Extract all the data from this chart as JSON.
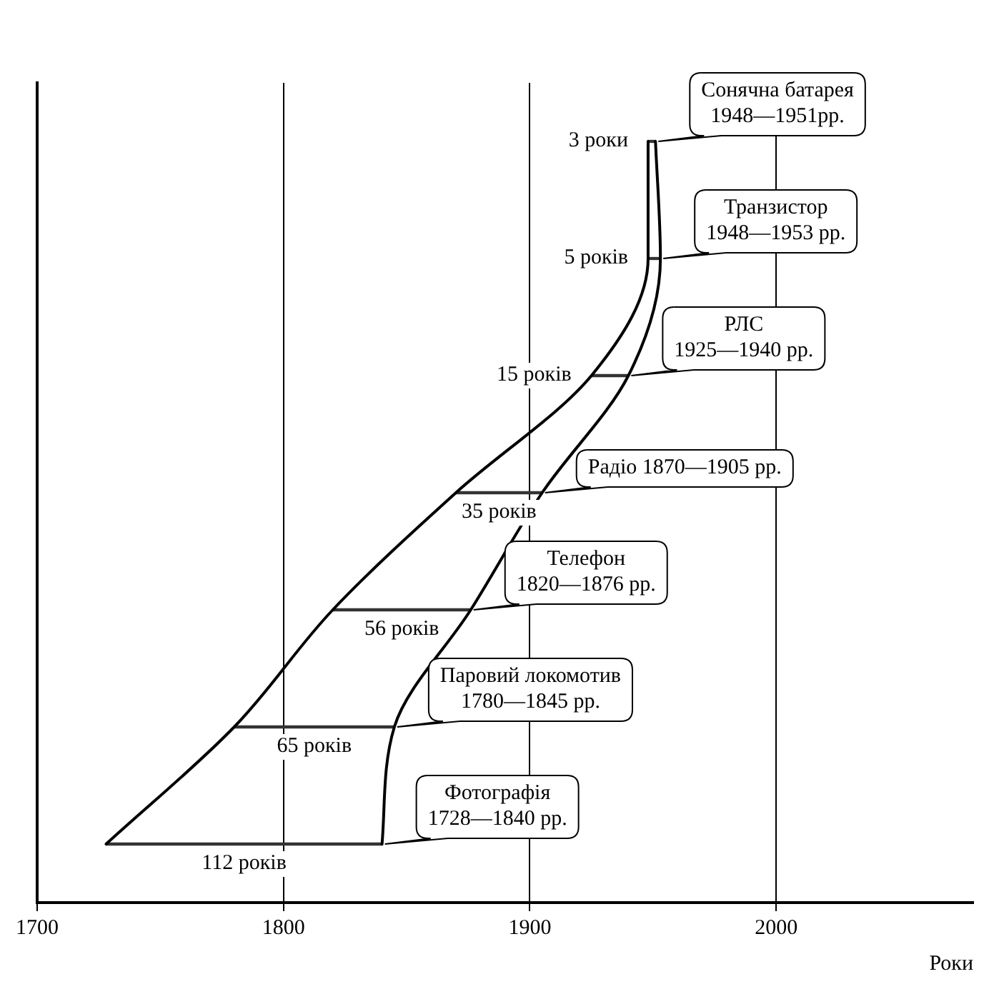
{
  "chart_data": {
    "type": "bar",
    "orientation": "horizontal",
    "xlabel": "Роки",
    "categories": [
      "Сонячна батарея\n1948—1951рр.",
      "Транзистор\n1948—1953 рр.",
      "РЛС\n1925—1940 рр.",
      "Радіо 1870—1905 рр.",
      "Телефон\n1820—1876 рр.",
      "Паровий локомотив\n1780—1845 рр.",
      "Фотографія\n1728—1840 рр."
    ],
    "series": [
      {
        "type": "bar",
        "color": "#333333",
        "base": [
          1948,
          1948,
          1925,
          1870,
          1820,
          1780,
          1728
        ],
        "values": [
          3,
          5,
          15,
          35,
          56,
          65,
          112
        ],
        "value_labels": [
          "3 роки",
          "5 років",
          "15 років",
          "35 років",
          "56 років",
          "65 років",
          "112 років"
        ]
      },
      {
        "type": "line",
        "color": "#000000",
        "values": [
          1948,
          1948,
          1925,
          1870,
          1820,
          1780,
          1728
        ]
      },
      {
        "type": "line",
        "color": "#000000",
        "values": [
          1951,
          1953,
          1940,
          1905,
          1876,
          1845,
          1840
        ]
      }
    ],
    "xlim": [
      1700,
      2080
    ],
    "xticks": [
      1700,
      1800,
      1900,
      2000
    ],
    "grid": "x",
    "tick_labels": "x",
    "legend": false,
    "marker": "none"
  }
}
